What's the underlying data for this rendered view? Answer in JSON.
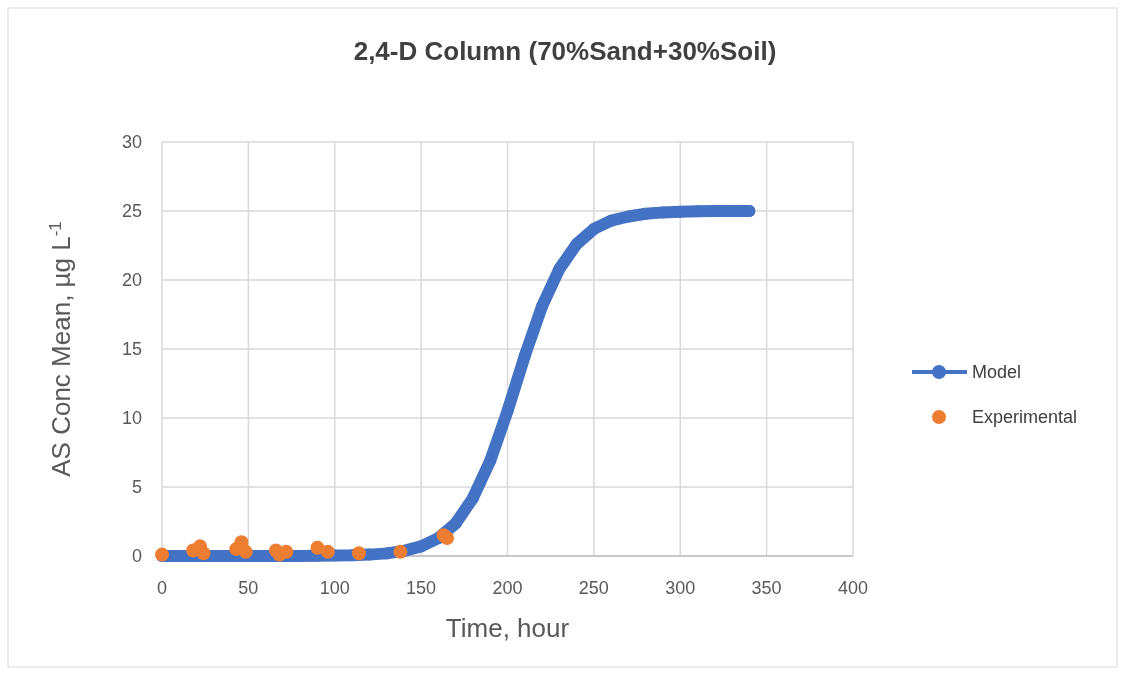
{
  "chart_data": {
    "type": "scatter",
    "title": "2,4-D Column (70%Sand+30%Soil)",
    "xlabel": "Time, hour",
    "ylabel": "AS Conc Mean, µg L$^{-1}$",
    "xlim": [
      0,
      400
    ],
    "xticks": [
      0,
      50,
      100,
      150,
      200,
      250,
      300,
      350,
      400
    ],
    "ylim": [
      0,
      30
    ],
    "yticks": [
      0,
      5,
      10,
      15,
      20,
      25,
      30
    ],
    "grid": true,
    "legend": "right",
    "series": [
      {
        "name": "Model",
        "type": "line",
        "marker": "circle",
        "color": "#4472c4",
        "x": [
          0,
          10,
          20,
          30,
          40,
          50,
          60,
          70,
          80,
          90,
          100,
          110,
          120,
          130,
          140,
          150,
          160,
          170,
          180,
          190,
          200,
          210,
          220,
          230,
          240,
          250,
          260,
          270,
          280,
          290,
          300,
          310,
          320,
          330,
          340
        ],
        "values": [
          0,
          0,
          0,
          0,
          0,
          0,
          0,
          0,
          0,
          0.01,
          0.03,
          0.05,
          0.1,
          0.19,
          0.37,
          0.7,
          1.3,
          2.36,
          4.2,
          6.9,
          10.5,
          14.5,
          18.1,
          20.8,
          22.6,
          23.7,
          24.3,
          24.6,
          24.8,
          24.9,
          24.95,
          24.98,
          25,
          25,
          25
        ]
      },
      {
        "name": "Experimental",
        "marker": "circle",
        "color": "#ed7d31",
        "x": [
          0,
          18,
          22,
          24,
          43,
          46,
          48.5,
          66,
          68,
          72,
          90,
          96,
          114,
          138,
          163,
          165
        ],
        "values": [
          0.1,
          0.4,
          0.7,
          0.2,
          0.5,
          1.0,
          0.3,
          0.4,
          0.1,
          0.3,
          0.6,
          0.3,
          0.2,
          0.3,
          1.5,
          1.3
        ]
      }
    ]
  }
}
